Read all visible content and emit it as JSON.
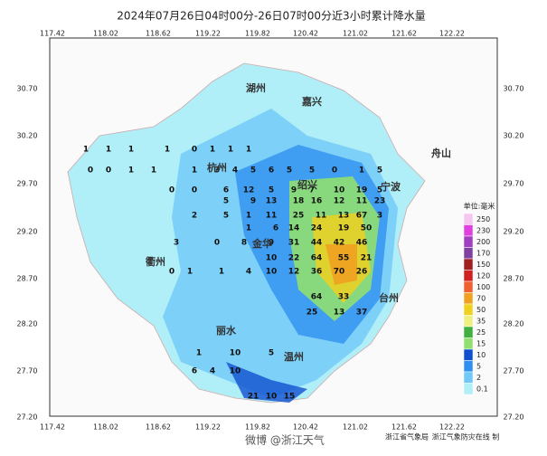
{
  "title": "2024年07月26日04时00分-26日07时00分近3小时累计降水量",
  "lon_labels": [
    "117.42",
    "118.02",
    "118.62",
    "119.22",
    "119.82",
    "120.42",
    "121.02",
    "121.62",
    "122.22"
  ],
  "lat_labels": [
    "30.70",
    "30.20",
    "29.70",
    "29.20",
    "28.70",
    "28.20",
    "27.70",
    "27.20"
  ],
  "cities": [
    "湖州",
    "嘉兴",
    "杭州",
    "绍兴",
    "宁波",
    "舟山",
    "金华",
    "衢州",
    "丽水",
    "台州",
    "温州"
  ],
  "legend": {
    "title": "单位:毫米",
    "levels": [
      "250",
      "230",
      "200",
      "170",
      "150",
      "120",
      "100",
      "70",
      "50",
      "35",
      "25",
      "15",
      "10",
      "5",
      "2",
      "0.1"
    ],
    "colors": [
      "#f4c6f0",
      "#e040e0",
      "#a040c0",
      "#8040a0",
      "#a02020",
      "#d02020",
      "#f06030",
      "#f0a020",
      "#f0d020",
      "#f0f080",
      "#40b040",
      "#90e070",
      "#1050d0",
      "#3090f0",
      "#70c8f8",
      "#b0eef8"
    ]
  },
  "stations": [
    1,
    1,
    1,
    1,
    0,
    1,
    1,
    1,
    0,
    0,
    1,
    1,
    1,
    3,
    4,
    5,
    6,
    5,
    5,
    0,
    1,
    5,
    0,
    0,
    6,
    12,
    5,
    9,
    7,
    10,
    19,
    5,
    5,
    9,
    13,
    18,
    16,
    12,
    11,
    23,
    2,
    5,
    1,
    11,
    25,
    11,
    13,
    67,
    3,
    1,
    6,
    14,
    24,
    19,
    50,
    3,
    0,
    8,
    9,
    31,
    44,
    42,
    46,
    10,
    22,
    64,
    55,
    21,
    0,
    1,
    1,
    4,
    10,
    12,
    36,
    70,
    26,
    64,
    33,
    25,
    13,
    37,
    1,
    10,
    5,
    6,
    4,
    10,
    21,
    10,
    15
  ],
  "credits": [
    "浙江省气象局",
    "浙江气象防灾在线 制"
  ],
  "watermark": "微博 @浙江天气"
}
